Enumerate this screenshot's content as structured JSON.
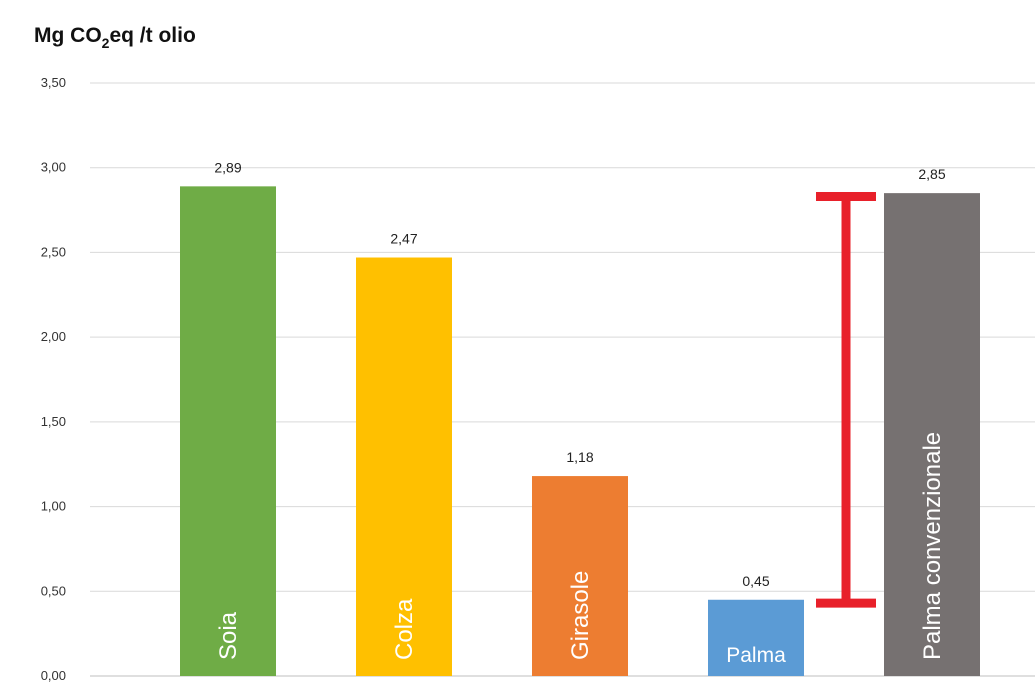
{
  "chart_data": {
    "type": "bar",
    "ylabel": {
      "prefix": "Mg CO",
      "subscript": "2",
      "suffix": "eq /t olio"
    },
    "categories": [
      "Soia",
      "Colza",
      "Girasole",
      "Palma",
      "Palma convenzionale"
    ],
    "values": [
      2.89,
      2.47,
      1.18,
      0.45,
      2.85
    ],
    "data_labels": [
      "2,89",
      "2,47",
      "1,18",
      "0,45",
      "2,85"
    ],
    "bar_colors": [
      "#6fac46",
      "#ffc000",
      "#ed7d31",
      "#5b9bd5",
      "#767171"
    ],
    "ylim": [
      0,
      3.5
    ],
    "yticks": [
      0,
      0.5,
      1.0,
      1.5,
      2.0,
      2.5,
      3.0,
      3.5
    ],
    "ytick_labels": [
      "0,00",
      "0,50",
      "1,00",
      "1,50",
      "2,00",
      "2,50",
      "3,00",
      "3,50"
    ],
    "grid": true,
    "legend": "none",
    "range_indicator": {
      "low": 0.43,
      "high": 2.83,
      "color": "#e8202a"
    }
  }
}
